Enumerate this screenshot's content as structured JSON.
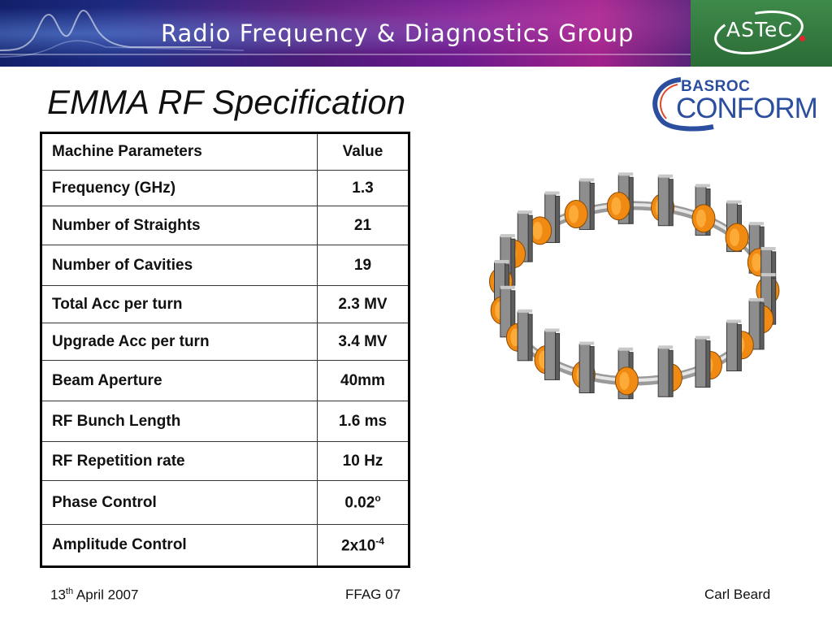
{
  "header": {
    "group_title": "Radio Frequency & Diagnostics Group",
    "logo_text": "ASTeC"
  },
  "slide": {
    "title": "EMMA RF Specification"
  },
  "partner_logo": {
    "top_text": "BASROC",
    "bottom_text": "CONFORM"
  },
  "table": {
    "headers": [
      "Machine Parameters",
      "Value"
    ],
    "rows": [
      {
        "name": "Frequency (GHz)",
        "value": "1.3"
      },
      {
        "name": "Number of Straights",
        "value": "21"
      },
      {
        "name": "Number of Cavities",
        "value": "19"
      },
      {
        "name": "Total Acc per turn",
        "value": "2.3 MV"
      },
      {
        "name": "Upgrade Acc per turn",
        "value": "3.4 MV"
      },
      {
        "name": "Beam Aperture",
        "value": "40mm"
      },
      {
        "name": "RF Bunch Length",
        "value": "1.6 ms"
      },
      {
        "name": "RF Repetition rate",
        "value": "10 Hz"
      },
      {
        "name": "Phase Control",
        "value": "0.02",
        "value_sup": "o"
      },
      {
        "name": "Amplitude Control",
        "value": "2x10",
        "value_sup": "-4"
      }
    ]
  },
  "footer": {
    "date_day": "13",
    "date_suffix": "th",
    "date_rest": " April 2007",
    "event": "FFAG 07",
    "author": "Carl Beard"
  },
  "colors": {
    "cavity_orange": "#f08a12",
    "magnet_grey": "#8e8e8e",
    "brand_blue": "#2b4f9e",
    "astec_green": "#2f7a3c"
  }
}
